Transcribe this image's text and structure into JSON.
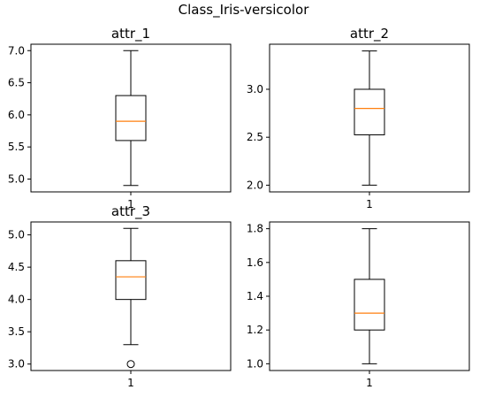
{
  "figure": {
    "suptitle": "Class_Iris-versicolor"
  },
  "colors": {
    "box": "#000000",
    "median": "#ff7f0e",
    "background": "#ffffff"
  },
  "chart_data": [
    {
      "type": "box",
      "title": "attr_1",
      "categories": [
        "1"
      ],
      "ylim": [
        4.8,
        7.1
      ],
      "yticks": [
        5.0,
        5.5,
        6.0,
        6.5,
        7.0
      ],
      "ytick_labels": [
        "5.0",
        "5.5",
        "6.0",
        "6.5",
        "7.0"
      ],
      "xtick_labels": [
        "1"
      ],
      "box": {
        "whisker_low": 4.9,
        "q1": 5.6,
        "median": 5.9,
        "q3": 6.3,
        "whisker_high": 7.0,
        "outliers": []
      }
    },
    {
      "type": "box",
      "title": "attr_2",
      "categories": [
        "1"
      ],
      "ylim": [
        1.93,
        3.47
      ],
      "yticks": [
        2.0,
        2.5,
        3.0
      ],
      "ytick_labels": [
        "2.0",
        "2.5",
        "3.0"
      ],
      "xtick_labels": [
        "1"
      ],
      "box": {
        "whisker_low": 2.0,
        "q1": 2.525,
        "median": 2.8,
        "q3": 3.0,
        "whisker_high": 3.4,
        "outliers": []
      }
    },
    {
      "type": "box",
      "title": "attr_3",
      "categories": [
        "1"
      ],
      "ylim": [
        2.9,
        5.2
      ],
      "yticks": [
        3.0,
        3.5,
        4.0,
        4.5,
        5.0
      ],
      "ytick_labels": [
        "3.0",
        "3.5",
        "4.0",
        "4.5",
        "5.0"
      ],
      "xtick_labels": [
        "1"
      ],
      "box": {
        "whisker_low": 3.3,
        "q1": 4.0,
        "median": 4.35,
        "q3": 4.6,
        "whisker_high": 5.1,
        "outliers": [
          3.0
        ]
      }
    },
    {
      "type": "box",
      "title": "",
      "categories": [
        "1"
      ],
      "ylim": [
        0.96,
        1.84
      ],
      "yticks": [
        1.0,
        1.2,
        1.4,
        1.6,
        1.8
      ],
      "ytick_labels": [
        "1.0",
        "1.2",
        "1.4",
        "1.6",
        "1.8"
      ],
      "xtick_labels": [
        "1"
      ],
      "box": {
        "whisker_low": 1.0,
        "q1": 1.2,
        "median": 1.3,
        "q3": 1.5,
        "whisker_high": 1.8,
        "outliers": []
      }
    }
  ]
}
